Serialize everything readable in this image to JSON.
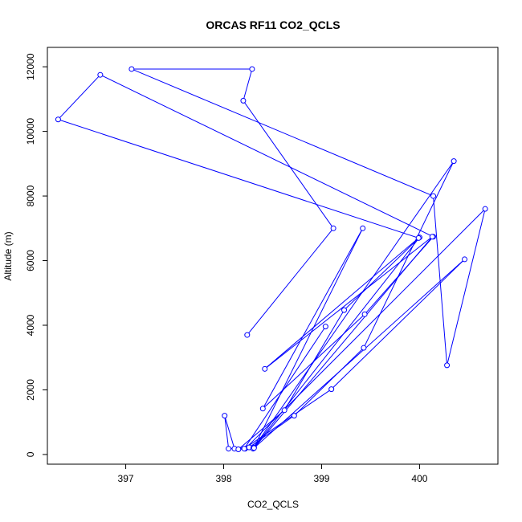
{
  "chart_data": {
    "type": "scatter",
    "title": "ORCAS RF11 CO2_QCLS",
    "xlabel": "CO2_QCLS",
    "ylabel": "Altitude (m)",
    "xlim": [
      396.2,
      400.8
    ],
    "ylim": [
      -300,
      12600
    ],
    "x_ticks": [
      397,
      398,
      399,
      400
    ],
    "y_ticks": [
      0,
      2000,
      4000,
      6000,
      8000,
      10000,
      12000
    ],
    "x_tick_labels": [
      "397",
      "398",
      "399",
      "400"
    ],
    "y_tick_labels": [
      "0",
      "2000",
      "4000",
      "6000",
      "8000",
      "10000",
      "12000"
    ],
    "grid": false,
    "legend": "none",
    "series_color": "#0000ff",
    "marker": "open-circle",
    "connected": true,
    "points": [
      {
        "x": 398.24,
        "y": 3700
      },
      {
        "x": 399.12,
        "y": 7000
      },
      {
        "x": 398.2,
        "y": 10950
      },
      {
        "x": 398.29,
        "y": 11930
      },
      {
        "x": 397.06,
        "y": 11930
      },
      {
        "x": 400.14,
        "y": 8000
      },
      {
        "x": 400.28,
        "y": 2760
      },
      {
        "x": 400.67,
        "y": 7600
      },
      {
        "x": 398.22,
        "y": 180
      },
      {
        "x": 398.11,
        "y": 180
      },
      {
        "x": 398.01,
        "y": 1200
      },
      {
        "x": 398.05,
        "y": 180
      },
      {
        "x": 398.26,
        "y": 220
      },
      {
        "x": 398.72,
        "y": 1200
      },
      {
        "x": 399.43,
        "y": 3300
      },
      {
        "x": 400.35,
        "y": 9080
      },
      {
        "x": 398.3,
        "y": 180
      },
      {
        "x": 398.15,
        "y": 160
      },
      {
        "x": 398.62,
        "y": 1370
      },
      {
        "x": 399.23,
        "y": 4470
      },
      {
        "x": 400.0,
        "y": 6720
      },
      {
        "x": 398.31,
        "y": 220
      },
      {
        "x": 399.42,
        "y": 7000
      },
      {
        "x": 398.4,
        "y": 1420
      },
      {
        "x": 399.44,
        "y": 4340
      },
      {
        "x": 400.14,
        "y": 6740
      },
      {
        "x": 396.74,
        "y": 11750
      },
      {
        "x": 396.31,
        "y": 10370
      },
      {
        "x": 399.99,
        "y": 6700
      },
      {
        "x": 398.42,
        "y": 2650
      },
      {
        "x": 400.13,
        "y": 6740
      },
      {
        "x": 398.31,
        "y": 200
      },
      {
        "x": 400.46,
        "y": 6040
      },
      {
        "x": 399.1,
        "y": 2020
      },
      {
        "x": 398.21,
        "y": 180
      },
      {
        "x": 399.04,
        "y": 3960
      }
    ]
  }
}
